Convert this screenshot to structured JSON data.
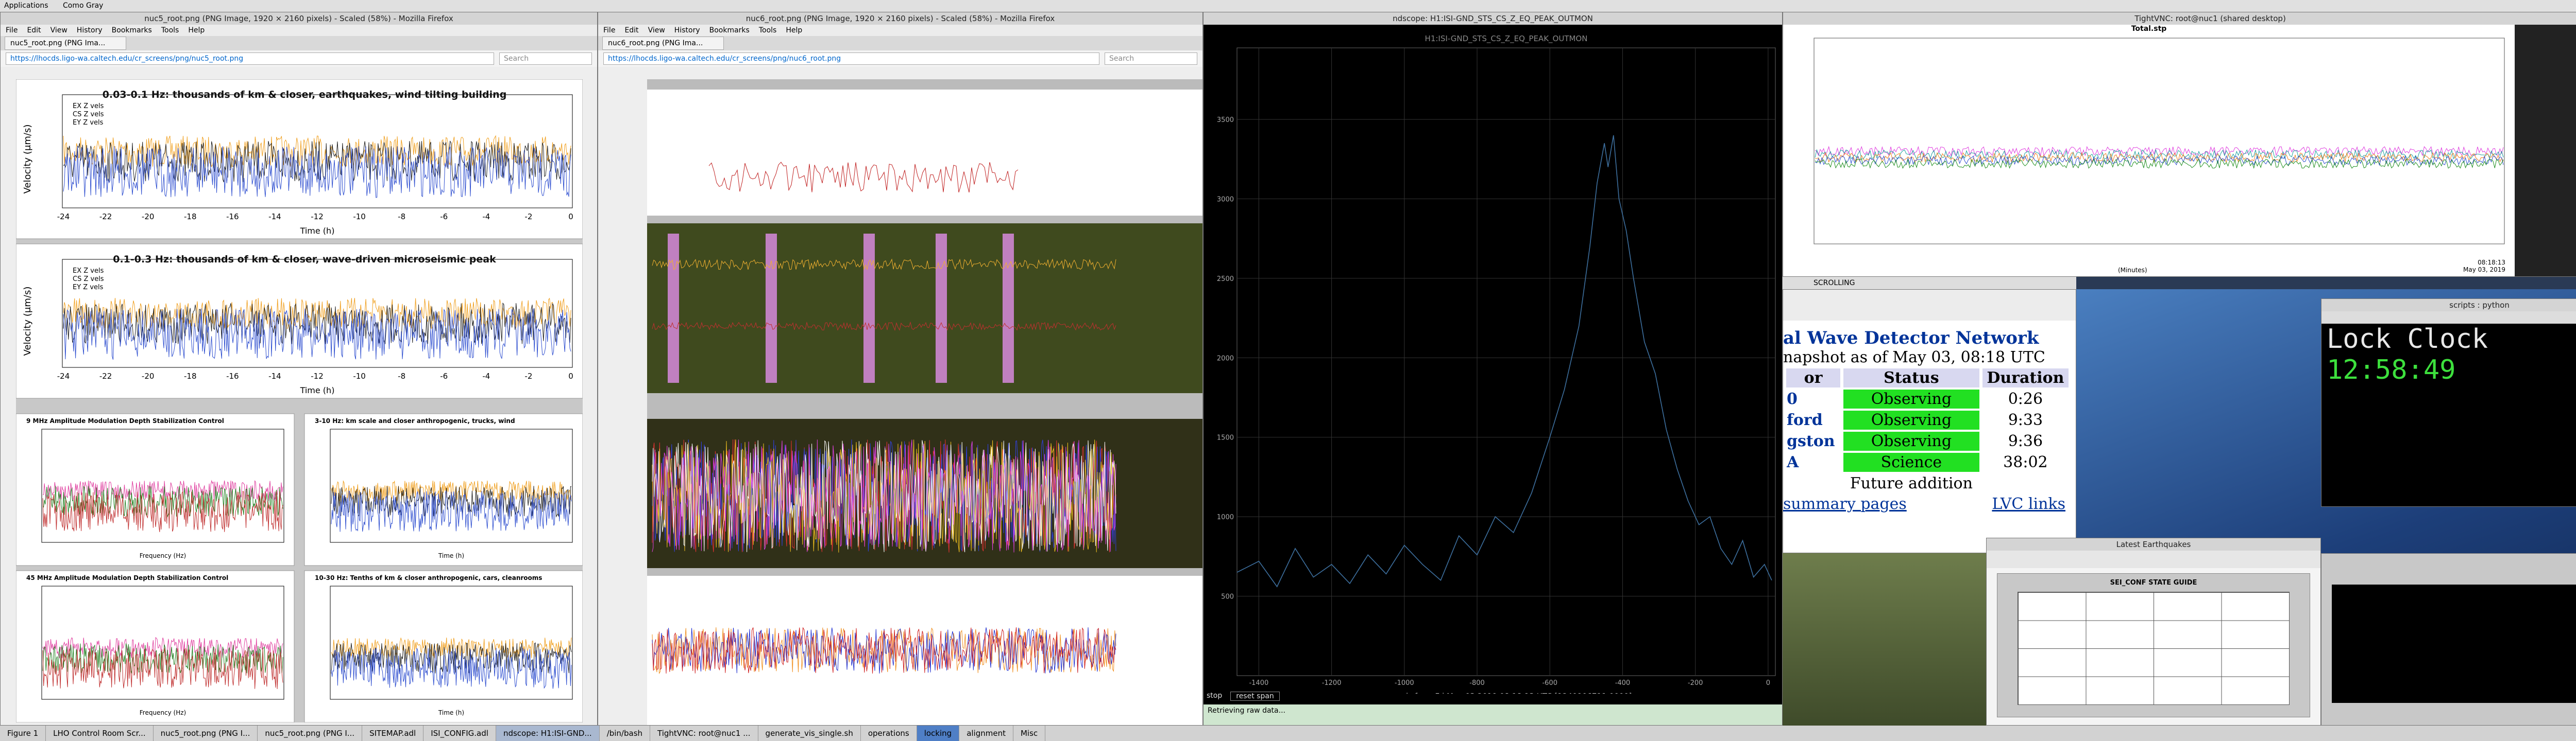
{
  "top_bar": {
    "menu": "Applications",
    "user": "Como Gray"
  },
  "firefox_left": {
    "title": "nuc5_root.png (PNG Image, 1920 × 2160 pixels) - Scaled (58%) - Mozilla Firefox",
    "menu": [
      "File",
      "Edit",
      "View",
      "History",
      "Bookmarks",
      "Tools",
      "Help"
    ],
    "tab": "nuc5_root.png (PNG Ima...",
    "url": "https://lhocds.ligo-wa.caltech.edu/cr_screens/png/nuc5_root.png",
    "search": "Search",
    "panels": [
      {
        "banner": "0.03-0.1 Hz: thousands of km & closer, earthquakes, wind tilting building",
        "ylabel": "Velocity (μm/s)",
        "xlabel": "Time (h)"
      },
      {
        "banner": "0.1-0.3 Hz: thousands of km & closer, wave-driven microseismic peak",
        "ylabel": "Velocity (μm/s)",
        "xlabel": "Time (h)"
      }
    ],
    "legend": [
      "EX Z vels",
      "CS Z vels",
      "EY Z vels"
    ],
    "xticks": [
      "-24",
      "-22",
      "-20",
      "-18",
      "-16",
      "-14",
      "-12",
      "-10",
      "-8",
      "-6",
      "-4",
      "-2",
      "0"
    ],
    "small_panels": [
      {
        "banner": "9 MHz Amplitude Modulation Depth Stabilization Control",
        "xlabel": "Frequency (Hz)"
      },
      {
        "banner": "3-10 Hz: km scale and closer anthropogenic, trucks, wind",
        "xlabel": "Time (h)"
      },
      {
        "banner": "45 MHz Amplitude Modulation Depth Stabilization Control",
        "xlabel": "Frequency (Hz)"
      },
      {
        "banner": "10-30 Hz: Tenths of km & closer anthropogenic, cars, cleanrooms",
        "xlabel": "Time (h)"
      }
    ]
  },
  "firefox_mid": {
    "title": "nuc6_root.png (PNG Image, 1920 × 2160 pixels) - Scaled (58%) - Mozilla Firefox",
    "menu": [
      "File",
      "Edit",
      "View",
      "History",
      "Bookmarks",
      "Tools",
      "Help"
    ],
    "tab": "nuc6_root.png (PNG Ima...",
    "url": "https://lhocds.ligo-wa.caltech.edu/cr_screens/png/nuc6_root.png",
    "search": "Search"
  },
  "ndscope": {
    "title": "ndscope: H1:ISI-GND_STS_CS_Z_EQ_PEAK_OUTMON",
    "chart_data": {
      "type": "line",
      "title": "H1:ISI-GND_STS_CS_Z_EQ_PEAK_OUTMON",
      "x_label": "seconds from Fri May 03 2019 08:18:13 UTC [1240906711.0000]",
      "x": [
        -1460,
        -1400,
        -1350,
        -1300,
        -1250,
        -1200,
        -1150,
        -1100,
        -1050,
        -1000,
        -950,
        -900,
        -850,
        -800,
        -750,
        -700,
        -650,
        -600,
        -560,
        -520,
        -490,
        -470,
        -450,
        -440,
        -425,
        -410,
        -390,
        -370,
        -340,
        -310,
        -280,
        -250,
        -220,
        -190,
        -160,
        -130,
        -100,
        -70,
        -40,
        -10,
        10
      ],
      "series": [
        {
          "name": "H1:ISI-GND_STS_CS_Z_EQ_PEAK_OUTMON",
          "color": "#3d6f9e",
          "values": [
            650,
            720,
            560,
            800,
            620,
            700,
            580,
            760,
            640,
            820,
            700,
            600,
            880,
            760,
            1000,
            900,
            1150,
            1500,
            1800,
            2200,
            2700,
            3100,
            3350,
            3200,
            3400,
            3000,
            2800,
            2500,
            2100,
            1900,
            1550,
            1300,
            1100,
            950,
            1000,
            800,
            700,
            850,
            620,
            700,
            600
          ]
        }
      ],
      "xlim": [
        -1460,
        20
      ],
      "ylim": [
        0,
        3950
      ],
      "xticks": [
        -1400,
        -1200,
        -1000,
        -800,
        -600,
        -400,
        -200,
        0
      ],
      "yticks": [
        500,
        1000,
        1500,
        2000,
        2500,
        3000,
        3500
      ],
      "grid": true
    },
    "buttons": [
      "stop",
      "reset span"
    ],
    "status": "Retrieving raw data..."
  },
  "vnc": {
    "title": "TightVNC: root@nuc1 (shared desktop)",
    "plot_title": "Total.stp",
    "x_label": "(Minutes)",
    "time": "08:18:13",
    "date": "May 03, 2019",
    "strip": "SCROLLING"
  },
  "status_page": {
    "heading": "al Wave Detector Network",
    "snapshot": "napshot as of May 03, 08:18 UTC",
    "header": [
      "or",
      "Status",
      "Duration"
    ],
    "rows": [
      [
        "0",
        "Observing",
        "0:26"
      ],
      [
        "ford",
        "Observing",
        "9:33"
      ],
      [
        "gston",
        "Observing",
        "9:36"
      ],
      [
        "A",
        "Science",
        "38:02"
      ],
      [
        "",
        "Future addition",
        ""
      ]
    ],
    "links": [
      "summary pages",
      "LVC links"
    ]
  },
  "konsole": {
    "title": "scripts : python",
    "label": "Lock Clock",
    "time": "12:58:49"
  },
  "earthquakes": {
    "title": "Latest Earthquakes",
    "table_title": "SEI_CONF STATE GUIDE"
  },
  "taskbar": [
    "Figure 1",
    "LHO Control Room Scr...",
    "nuc5_root.png (PNG I...",
    "nuc5_root.png (PNG I...",
    "SITEMAP.adl",
    "ISI_CONFIG.adl",
    "ndscope: H1:ISI-GND...",
    "/bin/bash",
    "TightVNC: root@nuc1 ...",
    "generate_vis_single.sh",
    "operations",
    "locking",
    "alignment",
    "Misc"
  ]
}
